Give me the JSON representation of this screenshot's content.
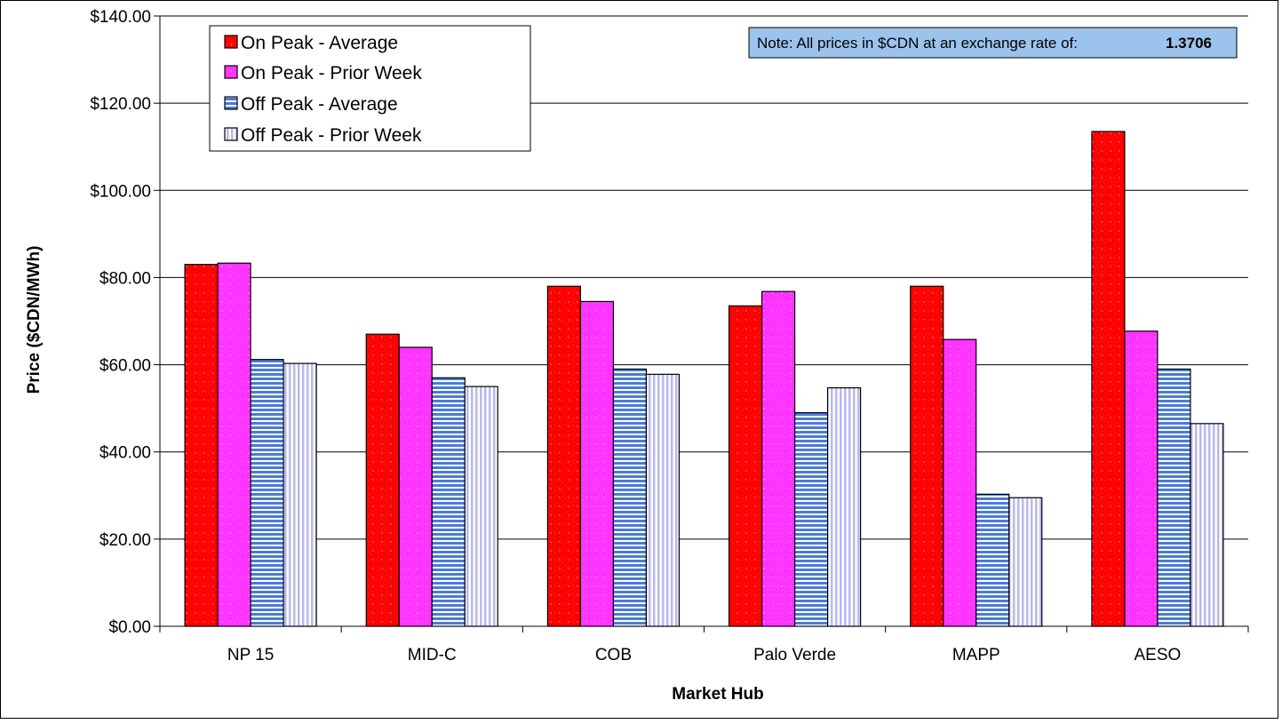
{
  "chart_data": {
    "type": "bar",
    "xlabel": "Market Hub",
    "ylabel": "Price ($CDN/MWh)",
    "ylim": [
      0,
      140
    ],
    "yticks": [
      0,
      20,
      40,
      60,
      80,
      100,
      120,
      140
    ],
    "ytick_labels": [
      "$0.00",
      "$20.00",
      "$40.00",
      "$60.00",
      "$80.00",
      "$100.00",
      "$120.00",
      "$140.00"
    ],
    "grid": true,
    "legend_position": "top-left",
    "categories": [
      "NP 15",
      "MID-C",
      "COB",
      "Palo Verde",
      "MAPP",
      "AESO"
    ],
    "series": [
      {
        "name": "On Peak - Average",
        "values": [
          83.0,
          67.0,
          78.0,
          73.5,
          78.0,
          113.5
        ],
        "color": "#ff0000",
        "pattern": "diag-back"
      },
      {
        "name": "On Peak - Prior Week",
        "values": [
          83.3,
          64.0,
          74.5,
          76.8,
          65.8,
          67.7
        ],
        "color": "#ff33ff",
        "pattern": "diag-fwd"
      },
      {
        "name": "Off Peak - Average",
        "values": [
          61.2,
          57.0,
          59.0,
          49.0,
          30.3,
          59.0
        ],
        "color": "#4a7bd8",
        "pattern": "horizontal"
      },
      {
        "name": "Off Peak - Prior Week",
        "values": [
          60.3,
          55.0,
          57.8,
          54.7,
          29.5,
          46.5
        ],
        "color": "#b8b8f0",
        "pattern": "vertical"
      }
    ],
    "annotation": {
      "text": "Note: All prices in $CDN at an exchange rate of:",
      "value": "1.3706",
      "background": "#9cc3ec"
    }
  }
}
